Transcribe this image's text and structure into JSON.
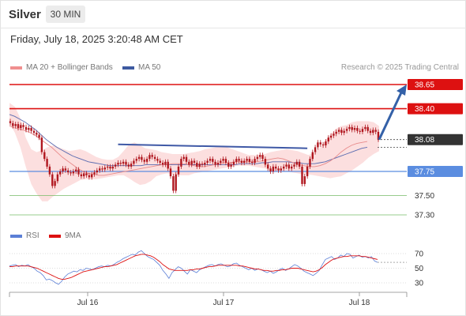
{
  "header": {
    "instrument": "Silver",
    "timeframe": "30 MIN",
    "datetime": "Friday, July 18, 2025 3:20:48 AM CET"
  },
  "legend": {
    "ma20_label": "MA 20 + Bollinger Bands",
    "ma50_label": "MA 50",
    "copyright": "Research © 2025 Trading Central",
    "rsi_label": "RSI",
    "ma9_label": "9MA"
  },
  "colors": {
    "resistance": "#dd1111",
    "support_pivot": "#5b8de0",
    "support": "#77bb66",
    "current": "#333333",
    "candle": "#b0171f",
    "bollinger": "#fbd4d4",
    "ma20": "#e88b8b",
    "ma50": "#5a6bb0",
    "rsi": "#5b7fd6",
    "ma9": "#dd1111",
    "trendline": "#3f59a6",
    "arrow": "#3461a8"
  },
  "chart_data": [
    {
      "type": "candlestick",
      "ylim": [
        37.05,
        38.95
      ],
      "x_ticks": [
        "Jul 16",
        "Jul 17",
        "Jul 18"
      ],
      "levels": [
        {
          "label": "38.65",
          "value": 38.65,
          "role": "resistance"
        },
        {
          "label": "38.40",
          "value": 38.4,
          "role": "resistance"
        },
        {
          "label": "38.08",
          "value": 38.08,
          "role": "current"
        },
        {
          "label": "37.75",
          "value": 37.75,
          "role": "pivot"
        },
        {
          "label": "37.50",
          "value": 37.5,
          "role": "support"
        },
        {
          "label": "37.30",
          "value": 37.3,
          "role": "support"
        }
      ],
      "close": [
        38.25,
        38.22,
        38.24,
        38.2,
        38.23,
        38.21,
        38.18,
        38.2,
        38.17,
        38.15,
        38.13,
        38.1,
        37.95,
        37.88,
        37.8,
        37.72,
        37.6,
        37.65,
        37.72,
        37.75,
        37.78,
        37.76,
        37.74,
        37.73,
        37.75,
        37.77,
        37.72,
        37.7,
        37.73,
        37.71,
        37.69,
        37.72,
        37.74,
        37.76,
        37.78,
        37.77,
        37.79,
        37.8,
        37.78,
        37.8,
        37.82,
        37.84,
        37.83,
        37.85,
        37.82,
        37.8,
        37.83,
        37.86,
        37.88,
        37.9,
        37.87,
        37.85,
        37.88,
        37.92,
        37.9,
        37.88,
        37.86,
        37.84,
        37.82,
        37.85,
        37.78,
        37.7,
        37.55,
        37.72,
        37.8,
        37.88,
        37.9,
        37.85,
        37.82,
        37.86,
        37.84,
        37.8,
        37.83,
        37.82,
        37.84,
        37.86,
        37.88,
        37.85,
        37.82,
        37.84,
        37.86,
        37.88,
        37.84,
        37.8,
        37.82,
        37.85,
        37.88,
        37.86,
        37.84,
        37.86,
        37.88,
        37.85,
        37.84,
        37.88,
        37.9,
        37.92,
        37.88,
        37.82,
        37.78,
        37.75,
        37.8,
        37.78,
        37.76,
        37.78,
        37.8,
        37.82,
        37.78,
        37.8,
        37.82,
        37.85,
        37.8,
        37.62,
        37.7,
        37.8,
        37.88,
        37.95,
        38.0,
        38.05,
        38.03,
        38.02,
        38.06,
        38.1,
        38.12,
        38.14,
        38.16,
        38.18,
        38.15,
        38.17,
        38.19,
        38.21,
        38.18,
        38.2,
        38.17,
        38.16,
        38.19,
        38.21,
        38.17,
        38.15,
        38.18,
        38.16,
        38.08
      ],
      "ma20": [
        38.22,
        38.2,
        38.19,
        38.17,
        38.15,
        38.12,
        38.08,
        38.04,
        38.0,
        37.95,
        37.9,
        37.86,
        37.82,
        37.78,
        37.75,
        37.73,
        37.72,
        37.71,
        37.71,
        37.72,
        37.73,
        37.74,
        37.75,
        37.76,
        37.77,
        37.78,
        37.79,
        37.8,
        37.81,
        37.82,
        37.82,
        37.83,
        37.83,
        37.83,
        37.82,
        37.81,
        37.8,
        37.8,
        37.81,
        37.82,
        37.83,
        37.84,
        37.84,
        37.85,
        37.85,
        37.85,
        37.85,
        37.85,
        37.86,
        37.87,
        37.88,
        37.89,
        37.88,
        37.86,
        37.84,
        37.82,
        37.81,
        37.8,
        37.8,
        37.81,
        37.83,
        37.86,
        37.9,
        37.95,
        37.99,
        38.02,
        38.04,
        38.05,
        38.06
      ],
      "ma50": [
        38.34,
        38.32,
        38.29,
        38.26,
        38.22,
        38.18,
        38.13,
        38.08,
        38.04,
        38.0,
        37.97,
        37.94,
        37.91,
        37.89,
        37.87,
        37.85,
        37.84,
        37.83,
        37.82,
        37.81,
        37.81,
        37.81,
        37.81,
        37.81,
        37.81,
        37.81,
        37.82,
        37.82,
        37.82,
        37.82,
        37.82,
        37.82,
        37.82,
        37.82,
        37.82,
        37.82,
        37.82,
        37.82,
        37.82,
        37.82,
        37.82,
        37.82,
        37.82,
        37.82,
        37.83,
        37.83,
        37.83,
        37.83,
        37.84,
        37.84,
        37.85,
        37.85,
        37.85,
        37.85,
        37.84,
        37.84,
        37.83,
        37.83,
        37.83,
        37.84,
        37.85,
        37.87,
        37.89,
        37.91,
        37.93,
        37.95,
        37.97,
        37.99,
        38.0
      ],
      "bb_upper": [
        38.46,
        38.42,
        38.3,
        38.1,
        37.98,
        37.95,
        37.97,
        38.0,
        38.02,
        38.0,
        37.98,
        37.96,
        37.97,
        37.98,
        37.96,
        37.93,
        37.9,
        37.88,
        37.87,
        37.87,
        37.9,
        37.96,
        38.03,
        38.05,
        38.02,
        37.99,
        37.98,
        37.97,
        37.95,
        37.94,
        37.93,
        37.93,
        37.93,
        37.94,
        37.95,
        37.96,
        37.98,
        37.99,
        38.0,
        38.0,
        38.0,
        37.98,
        37.96,
        37.94,
        37.92,
        37.92,
        37.92,
        37.93,
        37.95,
        37.96,
        37.97,
        37.98,
        37.97,
        37.96,
        37.94,
        37.92,
        37.94,
        37.99,
        38.06,
        38.13,
        38.19,
        38.22,
        38.23,
        38.26,
        38.27,
        38.27,
        38.27,
        38.26,
        38.22
      ],
      "bb_lower": [
        38.25,
        38.15,
        38.0,
        37.8,
        37.62,
        37.52,
        37.44,
        37.44,
        37.49,
        37.53,
        37.57,
        37.6,
        37.63,
        37.66,
        37.67,
        37.67,
        37.67,
        37.68,
        37.69,
        37.7,
        37.71,
        37.71,
        37.68,
        37.64,
        37.61,
        37.62,
        37.65,
        37.7,
        37.72,
        37.73,
        37.72,
        37.71,
        37.71,
        37.71,
        37.73,
        37.74,
        37.75,
        37.76,
        37.77,
        37.78,
        37.79,
        37.8,
        37.81,
        37.81,
        37.81,
        37.8,
        37.79,
        37.78,
        37.76,
        37.76,
        37.76,
        37.75,
        37.74,
        37.73,
        37.72,
        37.72,
        37.71,
        37.7,
        37.69,
        37.68,
        37.69,
        37.7,
        37.73,
        37.76,
        37.8,
        37.84,
        37.89,
        37.93,
        37.96
      ],
      "trendline": {
        "start_index": 41,
        "end_index": 113,
        "start_value": 38.03,
        "end_value": 37.99
      },
      "projection": {
        "from_value": 38.08,
        "to_value": 38.65
      }
    },
    {
      "type": "line",
      "title": "RSI",
      "yticks": [
        70,
        50,
        30
      ],
      "ylim": [
        20,
        80
      ],
      "rsi": [
        53,
        54,
        55,
        52,
        54,
        53,
        55,
        52,
        50,
        46,
        44,
        40,
        34,
        35,
        33,
        30,
        28,
        32,
        38,
        42,
        44,
        46,
        45,
        48,
        47,
        50,
        49,
        48,
        50,
        52,
        53,
        52,
        54,
        53,
        55,
        58,
        60,
        63,
        65,
        67,
        69,
        68,
        72,
        74,
        70,
        66,
        64,
        62,
        58,
        54,
        47,
        42,
        36,
        44,
        48,
        52,
        50,
        46,
        42,
        48,
        46,
        44,
        48,
        50,
        52,
        54,
        55,
        53,
        55,
        56,
        54,
        52,
        53,
        56,
        57,
        54,
        52,
        50,
        48,
        50,
        47,
        49,
        48,
        46,
        44,
        46,
        43,
        45,
        48,
        50,
        47,
        49,
        52,
        55,
        53,
        50,
        46,
        44,
        42,
        40,
        43,
        47,
        55,
        62,
        64,
        66,
        62,
        64,
        68,
        66,
        70,
        69,
        64,
        66,
        68,
        65,
        66,
        64,
        66,
        60,
        58
      ],
      "ma9": [
        52,
        52,
        53,
        53,
        53,
        53,
        53,
        52,
        51,
        50,
        48,
        46,
        44,
        42,
        40,
        38,
        36,
        35,
        35,
        36,
        37,
        39,
        41,
        43,
        45,
        46,
        47,
        48,
        49,
        50,
        51,
        52,
        52,
        53,
        54,
        55,
        57,
        59,
        61,
        63,
        65,
        67,
        68,
        69,
        69,
        68,
        67,
        65,
        62,
        59,
        55,
        52,
        49,
        48,
        47,
        47,
        47,
        47,
        47,
        48,
        48,
        49,
        49,
        50,
        51,
        52,
        52,
        53,
        54,
        54,
        54,
        54,
        54,
        54,
        54,
        53,
        53,
        52,
        51,
        50,
        49,
        49,
        48,
        47,
        47,
        46,
        46,
        47,
        47,
        48,
        48,
        49,
        50,
        50,
        50,
        49,
        48,
        47,
        46,
        45,
        46,
        48,
        51,
        55,
        58,
        61,
        63,
        64,
        65,
        66,
        66,
        67,
        67,
        67,
        67,
        66,
        66,
        65,
        64,
        63,
        62
      ]
    }
  ]
}
